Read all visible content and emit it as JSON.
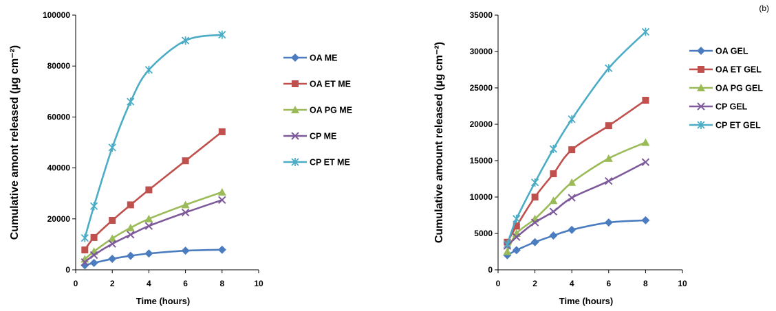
{
  "chart_data": [
    {
      "type": "line",
      "title": "",
      "xlabel": "Time (hours)",
      "ylabel": "Cumulative amont released (µg cm⁻²)",
      "xlim": [
        0,
        10
      ],
      "ylim": [
        0,
        100000
      ],
      "xticks": [
        0,
        2,
        4,
        6,
        8,
        10
      ],
      "yticks": [
        0,
        20000,
        40000,
        60000,
        80000,
        100000
      ],
      "xtick_labels": [
        "0",
        "2",
        "4",
        "6",
        "8",
        "10"
      ],
      "ytick_labels": [
        "0",
        "20000",
        "40000",
        "60000",
        "80000",
        "100000"
      ],
      "grid": false,
      "legend_position": "right",
      "x": [
        0.5,
        1,
        2,
        3,
        4,
        6,
        8
      ],
      "series": [
        {
          "name": "OA ME",
          "color": "#4a7cbf",
          "marker": "diamond",
          "values": [
            1800,
            2700,
            4300,
            5500,
            6400,
            7500,
            7900
          ]
        },
        {
          "name": "OA ET ME",
          "color": "#c0504d",
          "marker": "square",
          "values": [
            7800,
            12700,
            19400,
            25500,
            31400,
            42800,
            54200
          ]
        },
        {
          "name": "OA PG ME",
          "color": "#9bbb59",
          "marker": "triangle",
          "values": [
            4200,
            7200,
            12300,
            16500,
            20000,
            25500,
            30500
          ]
        },
        {
          "name": "CP  ME",
          "color": "#7e5a9b",
          "marker": "x",
          "values": [
            3000,
            5800,
            10200,
            13800,
            17200,
            22500,
            27400
          ]
        },
        {
          "name": "CP ET ME",
          "color": "#4bacc6",
          "marker": "star",
          "values": [
            12500,
            25000,
            48000,
            66000,
            78500,
            90000,
            92300
          ]
        }
      ]
    },
    {
      "type": "line",
      "title": "",
      "xlabel": "Time (hours)",
      "ylabel": "Cumulative amount released (µg cm⁻²)",
      "xlim": [
        0,
        10
      ],
      "ylim": [
        0,
        35000
      ],
      "xticks": [
        0,
        2,
        4,
        6,
        8,
        10
      ],
      "yticks": [
        0,
        5000,
        10000,
        15000,
        20000,
        25000,
        30000,
        35000
      ],
      "xtick_labels": [
        "0",
        "2",
        "4",
        "6",
        "8",
        "10"
      ],
      "ytick_labels": [
        "0",
        "5000",
        "10000",
        "15000",
        "20000",
        "25000",
        "30000",
        "35000"
      ],
      "grid": false,
      "legend_position": "right",
      "x": [
        0.5,
        1,
        2,
        3,
        4,
        6,
        8
      ],
      "series": [
        {
          "name": "OA GEL",
          "color": "#4a7cbf",
          "marker": "diamond",
          "values": [
            2000,
            2700,
            3800,
            4700,
            5500,
            6500,
            6800
          ]
        },
        {
          "name": "OA ET GEL",
          "color": "#c0504d",
          "marker": "square",
          "values": [
            3800,
            6000,
            10000,
            13200,
            16500,
            19800,
            23300
          ]
        },
        {
          "name": "OA PG GEL",
          "color": "#9bbb59",
          "marker": "triangle",
          "values": [
            2500,
            5000,
            7000,
            9500,
            12000,
            15300,
            17500
          ]
        },
        {
          "name": "CP  GEL",
          "color": "#7e5a9b",
          "marker": "x",
          "values": [
            3300,
            4500,
            6500,
            8000,
            9900,
            12200,
            14800
          ]
        },
        {
          "name": "CP ET GEL",
          "color": "#4bacc6",
          "marker": "star",
          "values": [
            3500,
            7000,
            12000,
            16600,
            20700,
            27700,
            32700
          ]
        }
      ]
    }
  ],
  "corner_label": "(b)"
}
